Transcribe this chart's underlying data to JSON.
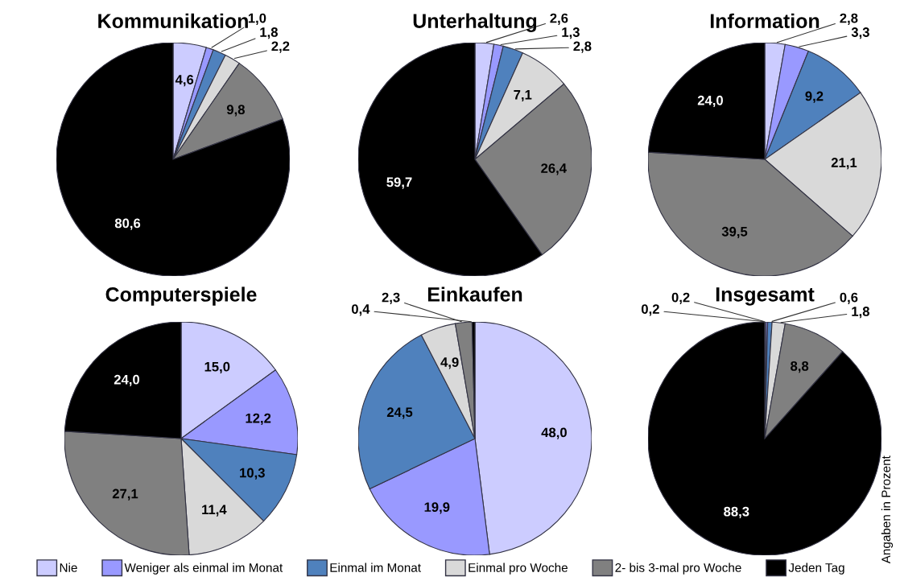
{
  "chart_data": [
    {
      "type": "pie",
      "title": "Kommunikation",
      "legend": "bottom",
      "categories": [
        "Nie",
        "Weniger als einmal im Monat",
        "Einmal im Monat",
        "Einmal pro Woche",
        "2- bis 3-mal pro Woche",
        "Jeden Tag"
      ],
      "colors": [
        "#ccccff",
        "#9999ff",
        "#4f81bd",
        "#d9d9d9",
        "#808080",
        "#000000"
      ],
      "values": [
        4.6,
        1.0,
        1.8,
        2.2,
        9.8,
        80.6
      ],
      "value_labels": [
        "4,6",
        "1,0",
        "1,8",
        "2,2",
        "9,8",
        "80,6"
      ]
    },
    {
      "type": "pie",
      "title": "Unterhaltung",
      "colors": [
        "#ccccff",
        "#9999ff",
        "#4f81bd",
        "#d9d9d9",
        "#808080",
        "#000000"
      ],
      "values": [
        2.6,
        1.3,
        2.8,
        7.1,
        26.4,
        59.7
      ],
      "value_labels": [
        "2,6",
        "1,3",
        "2,8",
        "7,1",
        "26,4",
        "59,7"
      ]
    },
    {
      "type": "pie",
      "title": "Information",
      "colors": [
        "#ccccff",
        "#9999ff",
        "#4f81bd",
        "#d9d9d9",
        "#808080",
        "#000000"
      ],
      "values": [
        2.8,
        3.3,
        9.2,
        21.1,
        39.5,
        24.0
      ],
      "value_labels": [
        "2,8",
        "3,3",
        "9,2",
        "21,1",
        "39,5",
        "24,0"
      ]
    },
    {
      "type": "pie",
      "title": "Computerspiele",
      "colors": [
        "#ccccff",
        "#9999ff",
        "#4f81bd",
        "#d9d9d9",
        "#808080",
        "#000000"
      ],
      "values": [
        15.0,
        12.2,
        10.3,
        11.4,
        27.1,
        24.0
      ],
      "value_labels": [
        "15,0",
        "12,2",
        "10,3",
        "11,4",
        "27,1",
        "24,0"
      ]
    },
    {
      "type": "pie",
      "title": "Einkaufen",
      "colors": [
        "#ccccff",
        "#9999ff",
        "#4f81bd",
        "#d9d9d9",
        "#808080",
        "#000000"
      ],
      "values": [
        48.0,
        19.9,
        24.5,
        4.9,
        2.3,
        0.4
      ],
      "value_labels": [
        "48,0",
        "19,9",
        "24,5",
        "4,9",
        "2,3",
        "0,4"
      ]
    },
    {
      "type": "pie",
      "title": "Insgesamt",
      "colors": [
        "#ccccff",
        "#9999ff",
        "#4f81bd",
        "#d9d9d9",
        "#808080",
        "#000000"
      ],
      "values": [
        0.2,
        0.2,
        0.6,
        1.8,
        8.8,
        88.3
      ],
      "value_labels": [
        "0,2",
        "0,2",
        "0,6",
        "1,8",
        "8,8",
        "88,3"
      ],
      "annotations": [
        "Angaben in Prozent"
      ]
    }
  ]
}
